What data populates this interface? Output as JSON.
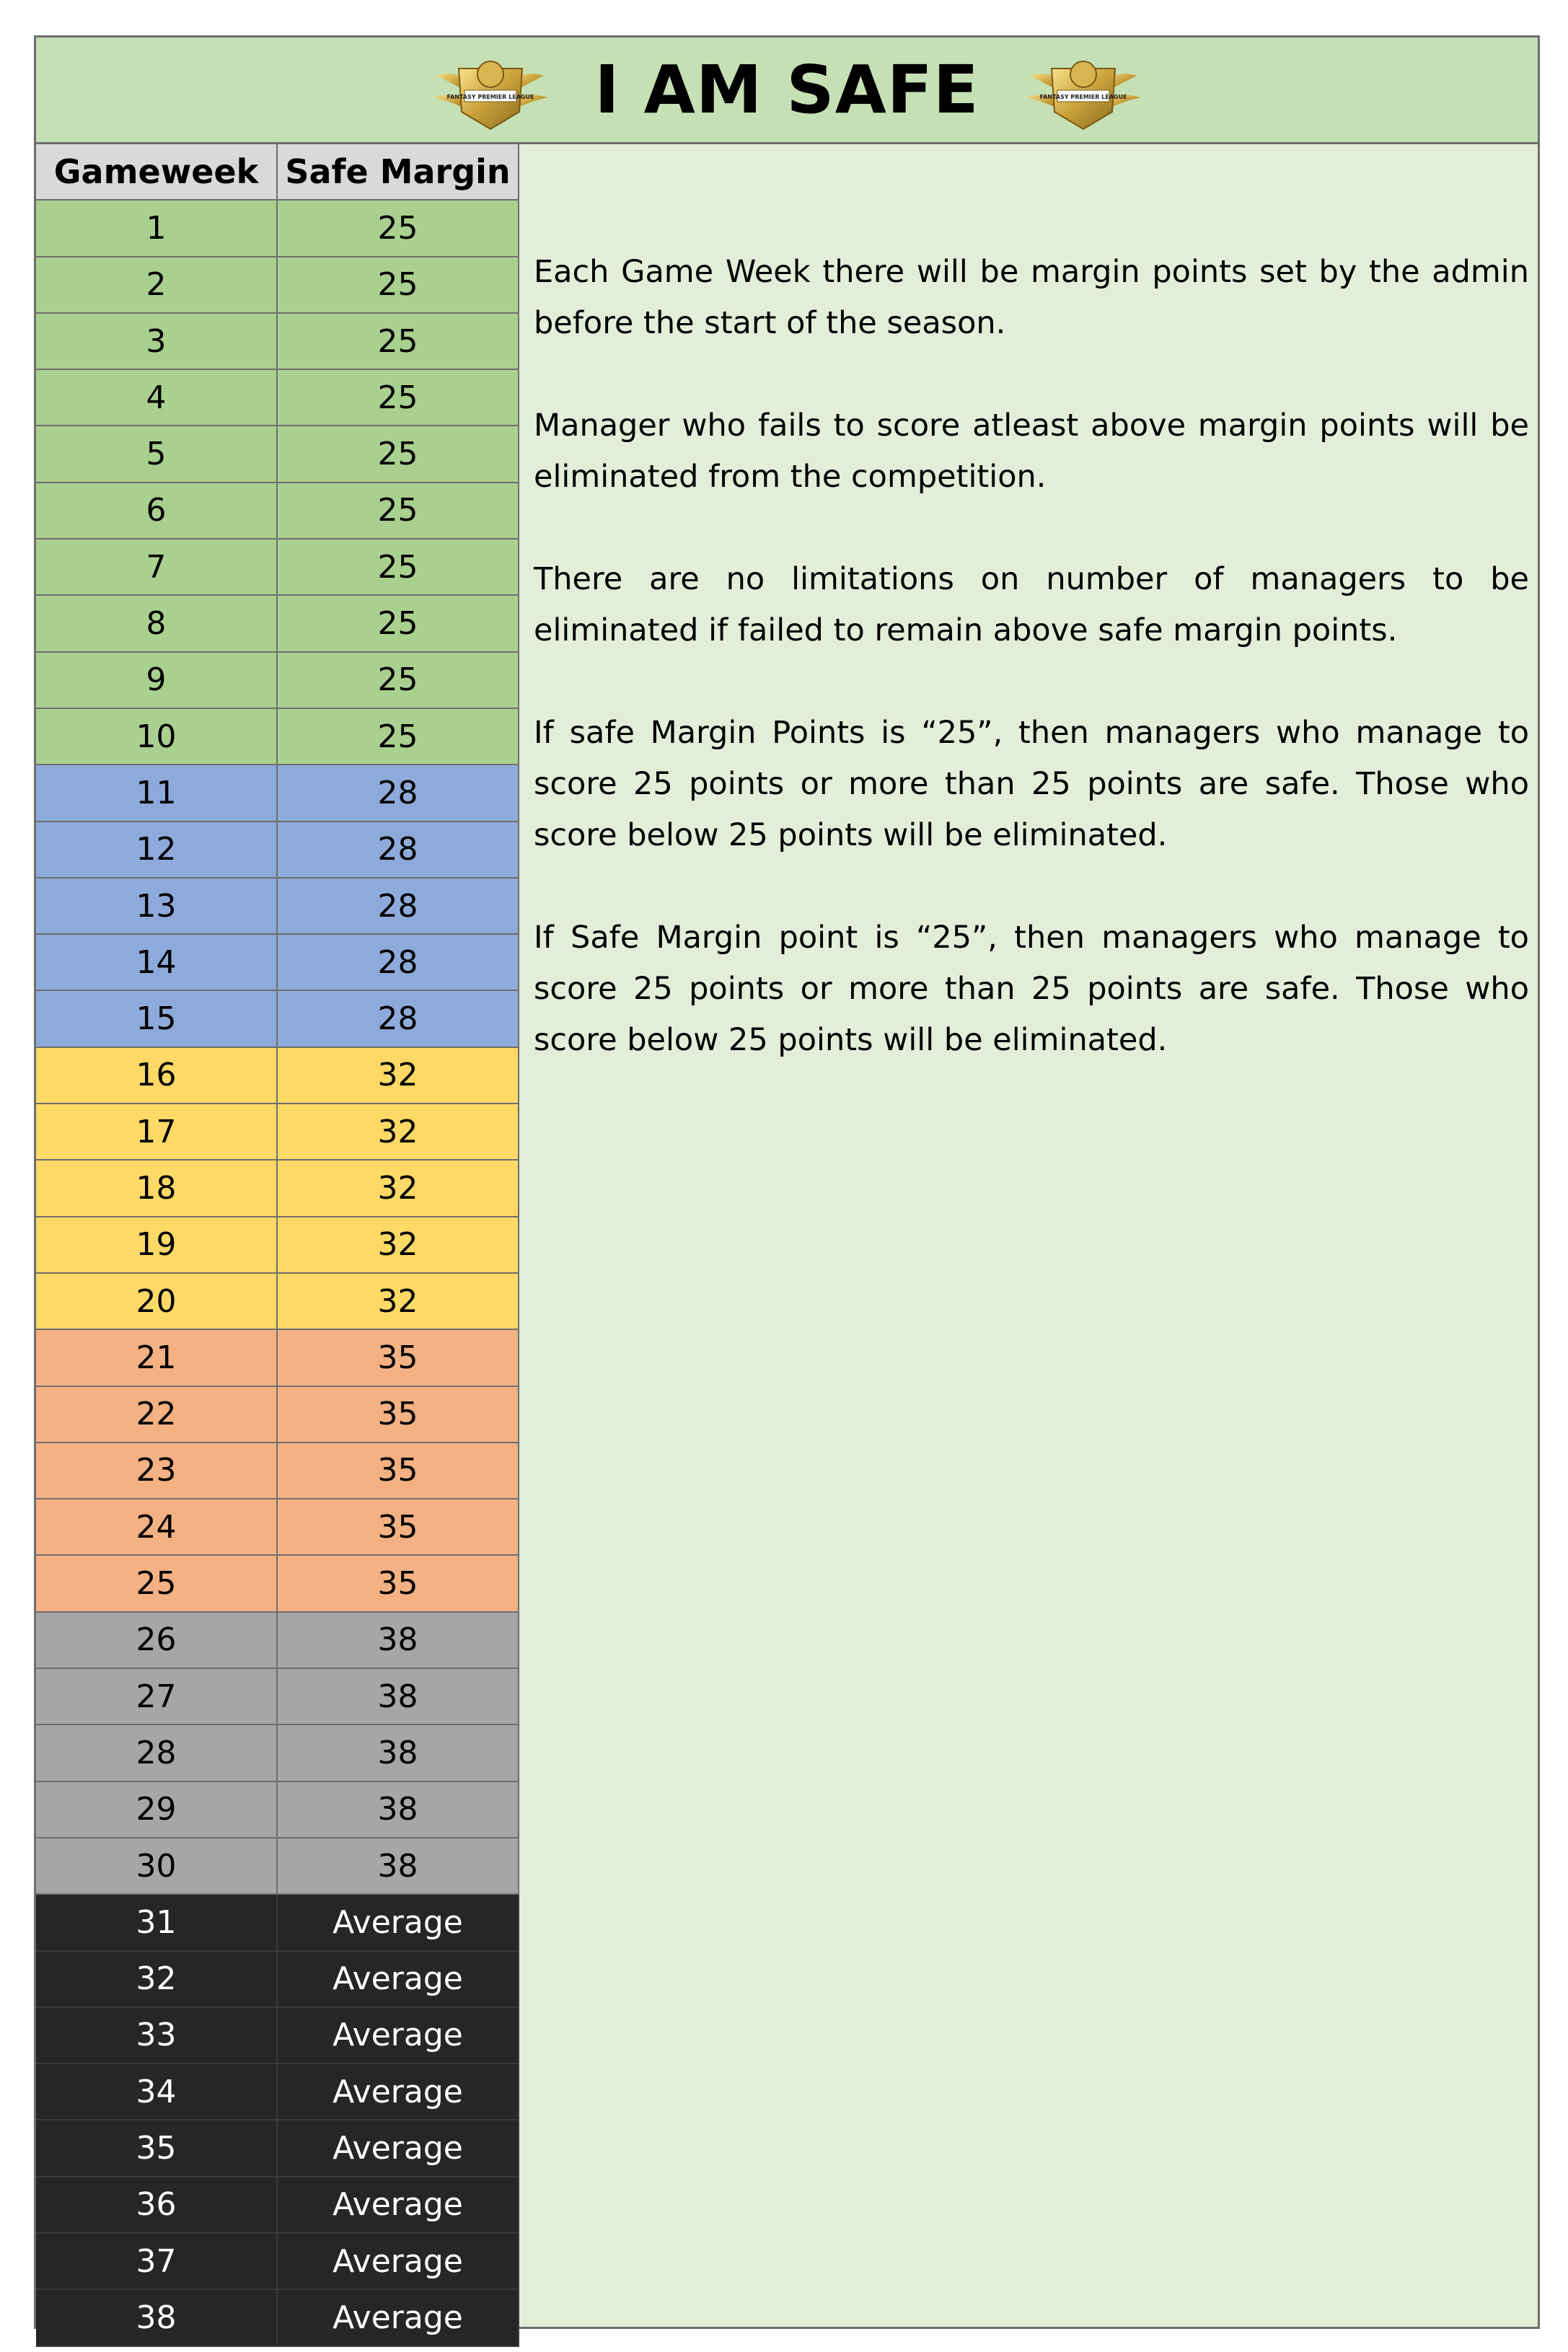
{
  "header": {
    "title": "I AM SAFE",
    "logo_left": "trophy-badge-icon",
    "logo_right": "trophy-badge-icon",
    "logo_text": "FANTASY PREMIER LEAGUE"
  },
  "table": {
    "columns": [
      "Gameweek",
      "Safe Margin"
    ],
    "rows": [
      {
        "gw": "1",
        "margin": "25",
        "band": "green"
      },
      {
        "gw": "2",
        "margin": "25",
        "band": "green"
      },
      {
        "gw": "3",
        "margin": "25",
        "band": "green"
      },
      {
        "gw": "4",
        "margin": "25",
        "band": "green"
      },
      {
        "gw": "5",
        "margin": "25",
        "band": "green"
      },
      {
        "gw": "6",
        "margin": "25",
        "band": "green"
      },
      {
        "gw": "7",
        "margin": "25",
        "band": "green"
      },
      {
        "gw": "8",
        "margin": "25",
        "band": "green"
      },
      {
        "gw": "9",
        "margin": "25",
        "band": "green"
      },
      {
        "gw": "10",
        "margin": "25",
        "band": "green"
      },
      {
        "gw": "11",
        "margin": "28",
        "band": "blue"
      },
      {
        "gw": "12",
        "margin": "28",
        "band": "blue"
      },
      {
        "gw": "13",
        "margin": "28",
        "band": "blue"
      },
      {
        "gw": "14",
        "margin": "28",
        "band": "blue"
      },
      {
        "gw": "15",
        "margin": "28",
        "band": "blue"
      },
      {
        "gw": "16",
        "margin": "32",
        "band": "yellow"
      },
      {
        "gw": "17",
        "margin": "32",
        "band": "yellow"
      },
      {
        "gw": "18",
        "margin": "32",
        "band": "yellow"
      },
      {
        "gw": "19",
        "margin": "32",
        "band": "yellow"
      },
      {
        "gw": "20",
        "margin": "32",
        "band": "yellow"
      },
      {
        "gw": "21",
        "margin": "35",
        "band": "orange"
      },
      {
        "gw": "22",
        "margin": "35",
        "band": "orange"
      },
      {
        "gw": "23",
        "margin": "35",
        "band": "orange"
      },
      {
        "gw": "24",
        "margin": "35",
        "band": "orange"
      },
      {
        "gw": "25",
        "margin": "35",
        "band": "orange"
      },
      {
        "gw": "26",
        "margin": "38",
        "band": "grey"
      },
      {
        "gw": "27",
        "margin": "38",
        "band": "grey"
      },
      {
        "gw": "28",
        "margin": "38",
        "band": "grey"
      },
      {
        "gw": "29",
        "margin": "38",
        "band": "grey"
      },
      {
        "gw": "30",
        "margin": "38",
        "band": "grey"
      },
      {
        "gw": "31",
        "margin": "Average",
        "band": "black"
      },
      {
        "gw": "32",
        "margin": "Average",
        "band": "black"
      },
      {
        "gw": "33",
        "margin": "Average",
        "band": "black"
      },
      {
        "gw": "34",
        "margin": "Average",
        "band": "black"
      },
      {
        "gw": "35",
        "margin": "Average",
        "band": "black"
      },
      {
        "gw": "36",
        "margin": "Average",
        "band": "black"
      },
      {
        "gw": "37",
        "margin": "Average",
        "band": "black"
      },
      {
        "gw": "38",
        "margin": "Average",
        "band": "black"
      }
    ]
  },
  "rules": [
    "Each Game Week there will be margin points set by the admin before the start of the season.",
    "Manager who fails to score atleast above margin points will be eliminated from the competition.",
    "There are no limitations on number of managers to be eliminated if failed to remain above safe margin points.",
    "If safe Margin Points is “25”, then managers who manage to score 25 points or more than 25 points are safe. Those who score below 25 points will be eliminated.",
    "If Safe Margin point is “25”, then managers who manage to score 25 points or more than 25 points are safe. Those who score below 25 points will be eliminated."
  ],
  "colors": {
    "page_bg": "#e2edda",
    "header_bg": "#c5e0b4",
    "column_header_bg": "#d9d9d9",
    "green": "#a9d08e",
    "blue": "#8eaadb",
    "yellow": "#ffd966",
    "orange": "#f4b183",
    "grey": "#a6a6a6",
    "black": "#262626"
  }
}
